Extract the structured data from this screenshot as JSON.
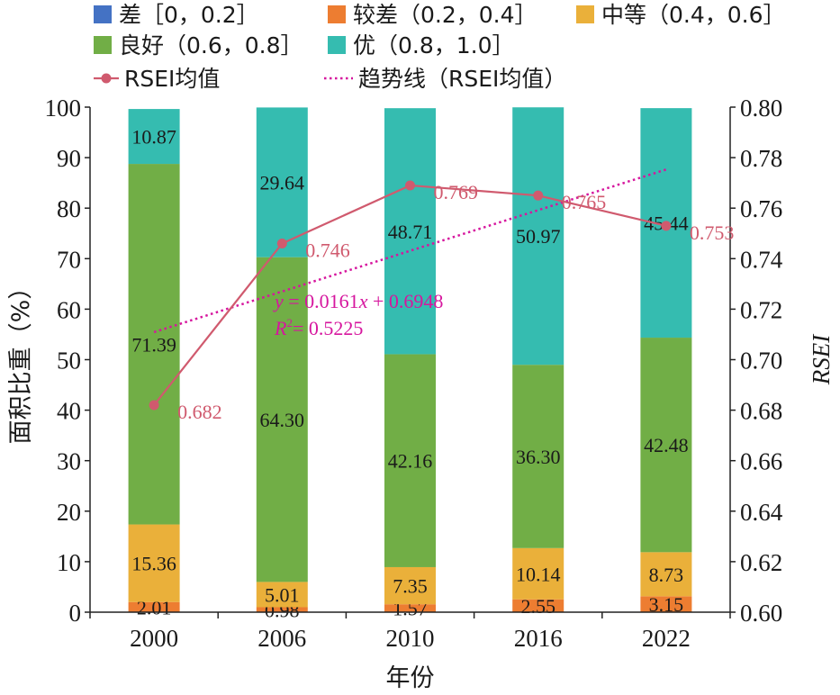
{
  "chart_data": {
    "type": "bar",
    "stacked": true,
    "categories": [
      "2000",
      "2006",
      "2010",
      "2016",
      "2022"
    ],
    "xlabel": "年份",
    "ylabel": "面积比重（%）",
    "y2label": "RSEI",
    "ylim": [
      0,
      100
    ],
    "y2lim": [
      0.6,
      0.8
    ],
    "yticks": [
      "0",
      "10",
      "20",
      "30",
      "40",
      "50",
      "60",
      "70",
      "80",
      "90",
      "100"
    ],
    "y2ticks": [
      "0.60",
      "0.62",
      "0.64",
      "0.66",
      "0.68",
      "0.70",
      "0.72",
      "0.74",
      "0.76",
      "0.78",
      "0.80"
    ],
    "grid": false,
    "legend_position": "top",
    "series": [
      {
        "name": "差［0，0.2］",
        "color": "#4472C4",
        "values": [
          0,
          0,
          0,
          0,
          0
        ],
        "labels": [
          "",
          "",
          "",
          "",
          ""
        ]
      },
      {
        "name": "较差（0.2，0.4］",
        "color": "#ED7D31",
        "values": [
          2.01,
          0.98,
          1.57,
          2.55,
          3.15
        ],
        "labels": [
          "2.01",
          "0.98",
          "1.57",
          "2.55",
          "3.15"
        ]
      },
      {
        "name": "中等（0.4，0.6］",
        "color": "#EAB03A",
        "values": [
          15.36,
          5.01,
          7.35,
          10.14,
          8.73
        ],
        "labels": [
          "15.36",
          "5.01",
          "7.35",
          "10.14",
          "8.73"
        ]
      },
      {
        "name": "良好（0.6，0.8］",
        "color": "#71AE46",
        "values": [
          71.39,
          64.3,
          42.16,
          36.3,
          42.48
        ],
        "labels": [
          "71.39",
          "64.30",
          "42.16",
          "36.30",
          "42.48"
        ]
      },
      {
        "name": "优（0.8，1.0］",
        "color": "#35BCB0",
        "values": [
          10.87,
          29.64,
          48.71,
          50.97,
          45.44
        ],
        "labels": [
          "10.87",
          "29.64",
          "48.71",
          "50.97",
          "45.44"
        ]
      }
    ],
    "line": {
      "name": "RSEI均值",
      "color": "#D05A6E",
      "values": [
        0.682,
        0.746,
        0.769,
        0.765,
        0.753
      ],
      "labels": [
        "0.682",
        "0.746",
        "0.769",
        "0.765",
        "0.753"
      ]
    },
    "trend": {
      "name": "趋势线（RSEI均值）",
      "color": "#D6169E",
      "slope": 0.0161,
      "intercept": 0.6948,
      "equation_parts": [
        "y",
        " = 0.0161",
        "x",
        " + 0.6948"
      ],
      "r2_parts": [
        "R",
        "2",
        "= 0.5225"
      ]
    }
  }
}
